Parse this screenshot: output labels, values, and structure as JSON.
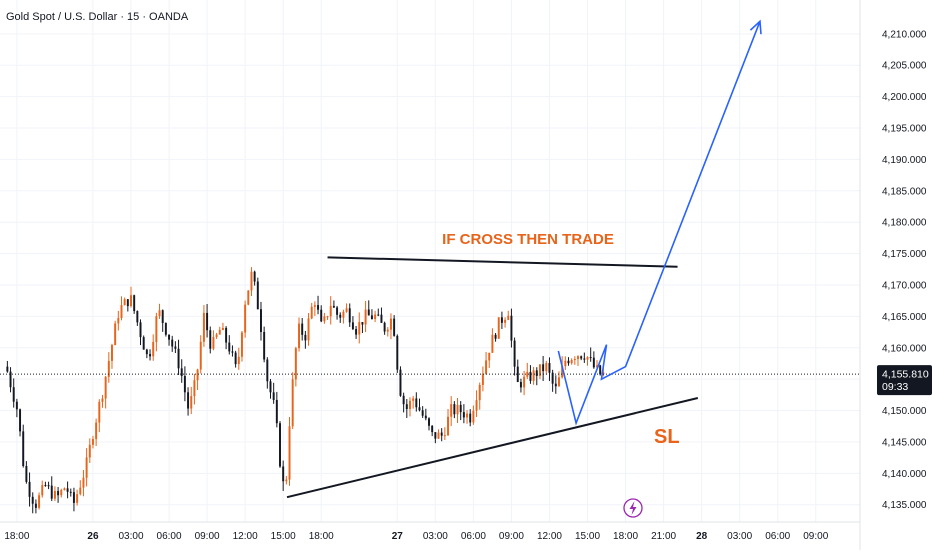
{
  "header": {
    "title": "Gold Spot / U.S. Dollar · 15 · OANDA"
  },
  "chart_data": {
    "type": "candlestick",
    "symbol": "Gold Spot / U.S. Dollar",
    "interval": "15",
    "source": "OANDA",
    "current_price": "4,155.810",
    "countdown": "09:33",
    "ylim": [
      4134,
      4213
    ],
    "y_ticks": [
      "4,135.000",
      "4,140.000",
      "4,145.000",
      "4,150.000",
      "4,155.000",
      "4,160.000",
      "4,165.000",
      "4,170.000",
      "4,175.000",
      "4,180.000",
      "4,185.000",
      "4,190.000",
      "4,195.000",
      "4,200.000",
      "4,205.000",
      "4,210.000"
    ],
    "x_ticks": [
      {
        "label": "18:00",
        "hour": 18,
        "bold": false
      },
      {
        "label": "26",
        "hour": 24,
        "bold": true
      },
      {
        "label": "03:00",
        "hour": 27,
        "bold": false
      },
      {
        "label": "06:00",
        "hour": 30,
        "bold": false
      },
      {
        "label": "09:00",
        "hour": 33,
        "bold": false
      },
      {
        "label": "12:00",
        "hour": 36,
        "bold": false
      },
      {
        "label": "15:00",
        "hour": 39,
        "bold": false
      },
      {
        "label": "18:00",
        "hour": 42,
        "bold": false
      },
      {
        "label": "27",
        "hour": 48,
        "bold": true
      },
      {
        "label": "03:00",
        "hour": 51,
        "bold": false
      },
      {
        "label": "06:00",
        "hour": 54,
        "bold": false
      },
      {
        "label": "09:00",
        "hour": 57,
        "bold": false
      },
      {
        "label": "12:00",
        "hour": 60,
        "bold": false
      },
      {
        "label": "15:00",
        "hour": 63,
        "bold": false
      },
      {
        "label": "18:00",
        "hour": 66,
        "bold": false
      },
      {
        "label": "21:00",
        "hour": 69,
        "bold": false
      },
      {
        "label": "28",
        "hour": 72,
        "bold": true
      },
      {
        "label": "03:00",
        "hour": 75,
        "bold": false
      },
      {
        "label": "06:00",
        "hour": 78,
        "bold": false
      },
      {
        "label": "09:00",
        "hour": 81,
        "bold": false
      }
    ],
    "xlim_hours": [
      17.3,
      83.7
    ],
    "price_path": [
      [
        17.4,
        4157
      ],
      [
        18.3,
        4150
      ],
      [
        18.9,
        4139
      ],
      [
        19.7,
        4135
      ],
      [
        20.5,
        4138
      ],
      [
        21.4,
        4136
      ],
      [
        22.1,
        4138
      ],
      [
        22.7,
        4135
      ],
      [
        23.2,
        4138
      ],
      [
        23.7,
        4141
      ],
      [
        24.3,
        4147
      ],
      [
        25.0,
        4153
      ],
      [
        25.7,
        4160
      ],
      [
        26.3,
        4166
      ],
      [
        27.2,
        4168
      ],
      [
        27.9,
        4163
      ],
      [
        28.6,
        4158
      ],
      [
        29.4,
        4166
      ],
      [
        30.2,
        4162
      ],
      [
        31.1,
        4157
      ],
      [
        31.8,
        4150
      ],
      [
        32.4,
        4155
      ],
      [
        33.0,
        4165
      ],
      [
        33.6,
        4160
      ],
      [
        34.3,
        4163
      ],
      [
        35.0,
        4160
      ],
      [
        35.6,
        4156
      ],
      [
        36.2,
        4167
      ],
      [
        36.8,
        4172
      ],
      [
        37.4,
        4165
      ],
      [
        38.0,
        4155
      ],
      [
        38.6,
        4150
      ],
      [
        39.0,
        4142
      ],
      [
        39.4,
        4136
      ],
      [
        39.8,
        4150
      ],
      [
        40.4,
        4163
      ],
      [
        41.0,
        4162
      ],
      [
        41.7,
        4168
      ],
      [
        42.3,
        4163
      ],
      [
        43.0,
        4167
      ],
      [
        43.6,
        4165
      ],
      [
        44.3,
        4166
      ],
      [
        45.0,
        4163
      ],
      [
        45.7,
        4165
      ],
      [
        46.5,
        4165
      ],
      [
        47.2,
        4163
      ],
      [
        47.9,
        4165
      ],
      [
        48.4,
        4154
      ],
      [
        48.9,
        4150
      ],
      [
        49.5,
        4152
      ],
      [
        50.3,
        4149
      ],
      [
        51.0,
        4146
      ],
      [
        51.8,
        4146
      ],
      [
        52.5,
        4150
      ],
      [
        53.2,
        4150
      ],
      [
        54.0,
        4149
      ],
      [
        54.8,
        4155
      ],
      [
        55.5,
        4160
      ],
      [
        56.3,
        4164
      ],
      [
        57.0,
        4166
      ],
      [
        57.6,
        4154
      ],
      [
        58.4,
        4155
      ],
      [
        59.2,
        4156
      ],
      [
        60.0,
        4157
      ],
      [
        60.7,
        4153
      ],
      [
        61.5,
        4158
      ],
      [
        62.3,
        4159
      ],
      [
        63.1,
        4159
      ],
      [
        63.7,
        4157
      ],
      [
        64.2,
        4155.8
      ]
    ],
    "annotations": {
      "resistance_label": "IF CROSS THEN TRADE",
      "stop_label": "SL",
      "resistance_color": "#e8641b",
      "stop_color": "#e8641b",
      "arrow_color": "#2962ff",
      "up_candle_color": "#e8641b",
      "down_candle_color": "#131722",
      "resistance_line": [
        [
          42.5,
          4174.4
        ],
        [
          70.1,
          4172.9
        ]
      ],
      "support_line": [
        [
          39.3,
          4136.2
        ],
        [
          71.7,
          4152.0
        ]
      ],
      "zigzag": [
        [
          60.7,
          4159.5
        ],
        [
          62.1,
          4148.0
        ],
        [
          64.5,
          4160.5
        ],
        [
          64.1,
          4155.0
        ],
        [
          66.0,
          4157.0
        ],
        [
          76.6,
          4212.0
        ]
      ]
    }
  },
  "icons": {
    "bolt": "lightning-bolt-icon"
  }
}
